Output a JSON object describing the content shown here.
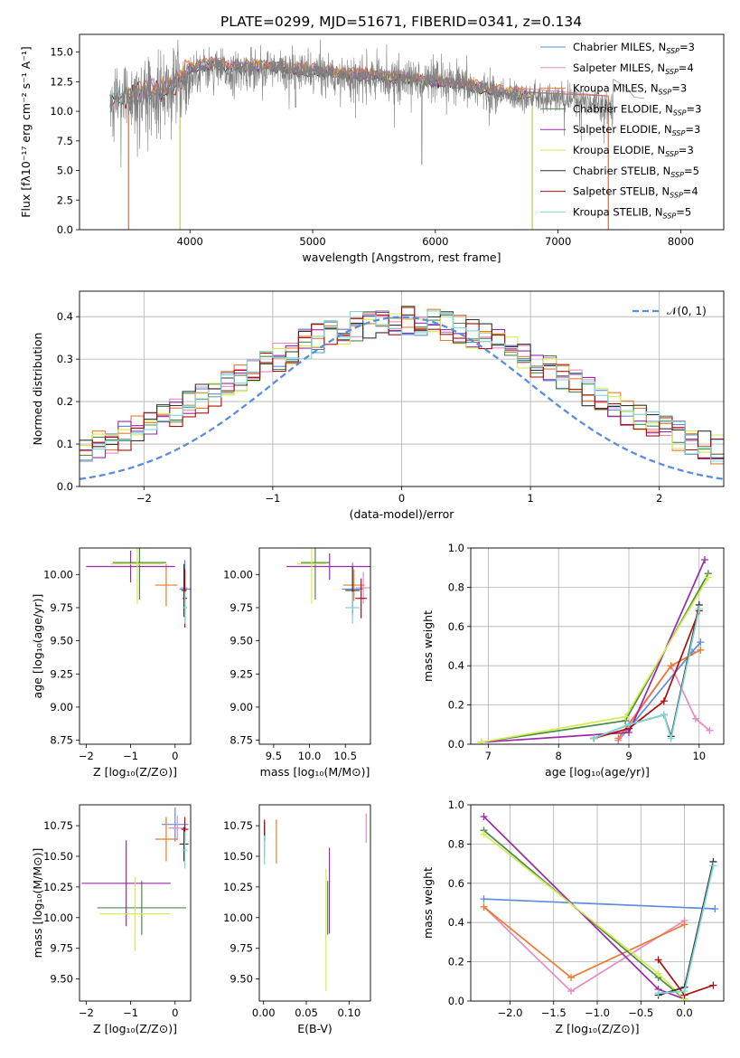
{
  "figure": {
    "title": "PLATE=0299, MJD=51671, FIBERID=0341, z=0.134"
  },
  "colors": {
    "Chabrier MILES": "#5b8ddc",
    "Salpeter MILES": "#e68ac4",
    "Kroupa MILES": "#ec7a2c",
    "Chabrier ELODIE": "#4c8a4c",
    "Salpeter ELODIE": "#9a2aa8",
    "Kroupa ELODIE": "#d6ec4c",
    "Chabrier STELIB": "#333333",
    "Salpeter STELIB": "#aa1010",
    "Kroupa STELIB": "#7fd6d6"
  },
  "chart_data": [
    {
      "id": "spectrum",
      "type": "line",
      "xlabel": "wavelength [Angstrom, rest frame]",
      "ylabel": "Flux [fλ10⁻¹⁷ erg cm⁻² s⁻¹ A⁻¹]",
      "xlim": [
        3100,
        8350
      ],
      "ylim": [
        0,
        16.5
      ],
      "xticks": [
        "4000",
        "5000",
        "6000",
        "7000",
        "8000"
      ],
      "yticks": [
        "0.0",
        "2.5",
        "5.0",
        "7.5",
        "10.0",
        "12.5",
        "15.0"
      ],
      "legend": [
        {
          "model": "Chabrier MILES",
          "label": "Chabrier MILES, N",
          "n": "3"
        },
        {
          "model": "Salpeter MILES",
          "label": "Salpeter MILES, N",
          "n": "4"
        },
        {
          "model": "Kroupa MILES",
          "label": "Kroupa MILES, N",
          "n": "3"
        },
        {
          "model": "Chabrier ELODIE",
          "label": "Chabrier ELODIE, N",
          "n": "3"
        },
        {
          "model": "Salpeter ELODIE",
          "label": "Salpeter ELODIE, N",
          "n": "3"
        },
        {
          "model": "Kroupa ELODIE",
          "label": "Kroupa ELODIE, N",
          "n": "3"
        },
        {
          "model": "Chabrier STELIB",
          "label": "Chabrier STELIB, N",
          "n": "5"
        },
        {
          "model": "Salpeter STELIB",
          "label": "Salpeter STELIB, N",
          "n": "4"
        },
        {
          "model": "Kroupa STELIB",
          "label": "Kroupa STELIB, N",
          "n": "5"
        }
      ],
      "legend_subscript": "SSP",
      "legend_placement": "upper-right",
      "data_continuum": [
        [
          3350,
          10.2
        ],
        [
          3450,
          11
        ],
        [
          3550,
          11.5
        ],
        [
          3650,
          11.2
        ],
        [
          3750,
          11.8
        ],
        [
          3850,
          12
        ],
        [
          3950,
          12.5
        ],
        [
          4050,
          13.5
        ],
        [
          4150,
          13.6
        ],
        [
          4250,
          13.4
        ],
        [
          4350,
          13.2
        ],
        [
          4500,
          13.6
        ],
        [
          4700,
          13.5
        ],
        [
          4900,
          13.3
        ],
        [
          5100,
          13.3
        ],
        [
          5300,
          12.9
        ],
        [
          5500,
          12.8
        ],
        [
          5700,
          12.7
        ],
        [
          5900,
          12.6
        ],
        [
          6100,
          12.4
        ],
        [
          6300,
          12
        ],
        [
          6500,
          11.4
        ],
        [
          6700,
          11.2
        ],
        [
          6900,
          11.1
        ],
        [
          7100,
          11
        ],
        [
          7300,
          10.8
        ],
        [
          7450,
          10.4
        ]
      ],
      "model_continuum": [
        [
          3350,
          10.5
        ],
        [
          3500,
          11.2
        ],
        [
          3700,
          11.6
        ],
        [
          3900,
          12.3
        ],
        [
          4000,
          13.5
        ],
        [
          4200,
          13.9
        ],
        [
          4400,
          13.6
        ],
        [
          4600,
          13.7
        ],
        [
          4800,
          13.5
        ],
        [
          5000,
          13.3
        ],
        [
          5200,
          13.1
        ],
        [
          5400,
          13
        ],
        [
          5600,
          12.8
        ],
        [
          5800,
          12.6
        ],
        [
          6000,
          12.4
        ],
        [
          6200,
          12.2
        ],
        [
          6400,
          11.8
        ],
        [
          6600,
          11.5
        ],
        [
          6750,
          11.3
        ]
      ],
      "model_ranges": {
        "MILES": [
          3500,
          7410
        ],
        "ELODIE": [
          3920,
          6790
        ],
        "STELIB": [
          3350,
          7450
        ]
      },
      "tail": [
        [
          7450,
          12.7
        ],
        [
          7560,
          12.0
        ],
        [
          7620,
          11.2
        ],
        [
          7700,
          11.1
        ]
      ]
    },
    {
      "id": "residuals",
      "type": "histogram",
      "xlabel": "(data-model)/error",
      "ylabel": "Normed distribution",
      "xlim": [
        -2.5,
        2.5
      ],
      "ylim": [
        0,
        0.46
      ],
      "xticks": [
        "−2",
        "−1",
        "0",
        "1",
        "2"
      ],
      "yticks": [
        "0.0",
        "0.1",
        "0.2",
        "0.3",
        "0.4"
      ],
      "bin_width": 0.1,
      "reference_curve": {
        "label": "𝒩(0, 1)",
        "mu": 0,
        "sigma": 1
      },
      "grid": true
    },
    {
      "id": "age-vs-Z",
      "type": "errorbar",
      "xlabel": "Z [log₁₀(Z/Z⊙)]",
      "ylabel": "age  [log₁₀(age/yr)]",
      "xlim": [
        -2.15,
        0.35
      ],
      "ylim": [
        8.72,
        10.2
      ],
      "xticks": [
        "−2",
        "−1",
        "0"
      ],
      "yticks": [
        "8.75",
        "9.00",
        "9.25",
        "9.50",
        "9.75",
        "10.00"
      ],
      "points": [
        {
          "model": "Chabrier MILES",
          "x": 0.22,
          "xerr": 0.12,
          "y": 9.89,
          "yerr": 0.22
        },
        {
          "model": "Salpeter MILES",
          "x": 0.2,
          "xerr": 0.08,
          "y": 9.9,
          "yerr": 0.1
        },
        {
          "model": "Kroupa MILES",
          "x": -0.2,
          "xerr": 0.25,
          "y": 9.92,
          "yerr": 0.16
        },
        {
          "model": "Chabrier ELODIE",
          "x": -0.8,
          "xerr": 0.6,
          "y": 10.09,
          "yerr": 0.28
        },
        {
          "model": "Salpeter ELODIE",
          "x": -1.0,
          "xerr": 1.0,
          "y": 10.06,
          "yerr": 0.12
        },
        {
          "model": "Kroupa ELODIE",
          "x": -0.85,
          "xerr": 0.6,
          "y": 10.08,
          "yerr": 0.3
        },
        {
          "model": "Chabrier STELIB",
          "x": 0.2,
          "xerr": 0.06,
          "y": 9.88,
          "yerr": 0.2
        },
        {
          "model": "Salpeter STELIB",
          "x": 0.22,
          "xerr": 0.05,
          "y": 9.82,
          "yerr": 0.22
        },
        {
          "model": "Kroupa STELIB",
          "x": 0.22,
          "xerr": 0.05,
          "y": 9.75,
          "yerr": 0.12
        }
      ]
    },
    {
      "id": "age-vs-mass",
      "type": "errorbar",
      "xlabel": "mass [log₁₀(M/M⊙)]",
      "ylabel": "",
      "xlim": [
        9.3,
        10.85
      ],
      "ylim": [
        8.72,
        10.2
      ],
      "xticks": [
        "9.5",
        "10.0",
        "10.5"
      ],
      "yticks": [
        "8.75",
        "9.00",
        "9.25",
        "9.50",
        "9.75",
        "10.00"
      ],
      "points": [
        {
          "model": "Chabrier MILES",
          "x": 10.6,
          "xerr": 0.15,
          "y": 9.89,
          "yerr": 0.2
        },
        {
          "model": "Salpeter MILES",
          "x": 10.75,
          "xerr": 0.1,
          "y": 9.9,
          "yerr": 0.12
        },
        {
          "model": "Kroupa MILES",
          "x": 10.62,
          "xerr": 0.15,
          "y": 9.92,
          "yerr": 0.12
        },
        {
          "model": "Chabrier ELODIE",
          "x": 10.08,
          "xerr": 0.2,
          "y": 10.09,
          "yerr": 0.28
        },
        {
          "model": "Salpeter ELODIE",
          "x": 10.28,
          "xerr": 0.6,
          "y": 10.06,
          "yerr": 0.1
        },
        {
          "model": "Kroupa ELODIE",
          "x": 10.03,
          "xerr": 0.2,
          "y": 10.08,
          "yerr": 0.3
        },
        {
          "model": "Chabrier STELIB",
          "x": 10.6,
          "xerr": 0.1,
          "y": 9.88,
          "yerr": 0.18
        },
        {
          "model": "Salpeter STELIB",
          "x": 10.72,
          "xerr": 0.08,
          "y": 9.82,
          "yerr": 0.15
        },
        {
          "model": "Kroupa STELIB",
          "x": 10.6,
          "xerr": 0.1,
          "y": 9.75,
          "yerr": 0.12
        }
      ]
    },
    {
      "id": "mass-weight-vs-age",
      "type": "line",
      "xlabel": "age  [log₁₀(age/yr)]",
      "ylabel": "mass weight",
      "xlim": [
        6.75,
        10.35
      ],
      "ylim": [
        0,
        1
      ],
      "xticks": [
        "7",
        "8",
        "9",
        "10"
      ],
      "yticks": [
        "0.0",
        "0.2",
        "0.4",
        "0.6",
        "0.8",
        "1.0"
      ],
      "grid": true,
      "series": [
        {
          "model": "Chabrier MILES",
          "x": [
            8.85,
            9.0,
            9.9,
            10.02
          ],
          "y": [
            0.02,
            0.08,
            0.47,
            0.52
          ]
        },
        {
          "model": "Salpeter MILES",
          "x": [
            8.85,
            9.6,
            9.95,
            10.15
          ],
          "y": [
            0.02,
            0.4,
            0.13,
            0.07
          ]
        },
        {
          "model": "Kroupa MILES",
          "x": [
            8.85,
            9.6,
            10.02
          ],
          "y": [
            0.03,
            0.4,
            0.48
          ]
        },
        {
          "model": "Chabrier ELODIE",
          "x": [
            6.9,
            8.95,
            10.13
          ],
          "y": [
            0.01,
            0.12,
            0.87
          ]
        },
        {
          "model": "Salpeter ELODIE",
          "x": [
            6.9,
            9.0,
            10.08
          ],
          "y": [
            0.01,
            0.06,
            0.94
          ]
        },
        {
          "model": "Kroupa ELODIE",
          "x": [
            6.9,
            8.95,
            10.13
          ],
          "y": [
            0.01,
            0.14,
            0.85
          ]
        },
        {
          "model": "Chabrier STELIB",
          "x": [
            8.5,
            9.0,
            9.5,
            9.6,
            10.0
          ],
          "y": [
            0.03,
            0.1,
            0.15,
            0.04,
            0.71
          ]
        },
        {
          "model": "Salpeter STELIB",
          "x": [
            8.5,
            9.0,
            9.5,
            10.0
          ],
          "y": [
            0.03,
            0.08,
            0.22,
            0.68
          ]
        },
        {
          "model": "Kroupa STELIB",
          "x": [
            8.5,
            9.0,
            9.5,
            9.6,
            10.0
          ],
          "y": [
            0.03,
            0.1,
            0.15,
            0.03,
            0.69
          ]
        }
      ]
    },
    {
      "id": "mass-vs-Z",
      "type": "errorbar",
      "xlabel": "Z [log₁₀(Z/Z⊙)]",
      "ylabel": "mass [log₁₀(M/M⊙)]",
      "xlim": [
        -2.15,
        0.35
      ],
      "ylim": [
        9.32,
        10.92
      ],
      "xticks": [
        "−2",
        "−1",
        "0"
      ],
      "yticks": [
        "9.50",
        "9.75",
        "10.00",
        "10.25",
        "10.50",
        "10.75"
      ],
      "points": [
        {
          "model": "Chabrier MILES",
          "x": 0.0,
          "xerr": 0.3,
          "y": 10.76,
          "yerr": 0.14
        },
        {
          "model": "Salpeter MILES",
          "x": 0.05,
          "xerr": 0.2,
          "y": 10.73,
          "yerr": 0.1
        },
        {
          "model": "Kroupa MILES",
          "x": -0.2,
          "xerr": 0.25,
          "y": 10.64,
          "yerr": 0.18
        },
        {
          "model": "Chabrier ELODIE",
          "x": -0.75,
          "xerr": 1.0,
          "y": 10.08,
          "yerr": 0.22
        },
        {
          "model": "Salpeter ELODIE",
          "x": -1.1,
          "xerr": 1.0,
          "y": 10.28,
          "yerr": 0.35
        },
        {
          "model": "Kroupa ELODIE",
          "x": -0.9,
          "xerr": 0.8,
          "y": 10.03,
          "yerr": 0.3
        },
        {
          "model": "Chabrier STELIB",
          "x": 0.2,
          "xerr": 0.1,
          "y": 10.6,
          "yerr": 0.14
        },
        {
          "model": "Salpeter STELIB",
          "x": 0.22,
          "xerr": 0.08,
          "y": 10.72,
          "yerr": 0.1
        },
        {
          "model": "Kroupa STELIB",
          "x": 0.22,
          "xerr": 0.06,
          "y": 10.55,
          "yerr": 0.15
        }
      ]
    },
    {
      "id": "mass-vs-ebv",
      "type": "errorbar",
      "xlabel": "E(B-V)",
      "ylabel": "",
      "xlim": [
        -0.005,
        0.125
      ],
      "ylim": [
        9.32,
        10.92
      ],
      "xticks": [
        "0.00",
        "0.05",
        "0.10"
      ],
      "yticks": [
        "9.50",
        "9.75",
        "10.00",
        "10.25",
        "10.50",
        "10.75"
      ],
      "points": [
        {
          "model": "Chabrier MILES",
          "x": 0.001,
          "xerr": 0.0,
          "y": 10.6,
          "yerr": 0.1
        },
        {
          "model": "Salpeter MILES",
          "x": 0.12,
          "xerr": 0.0,
          "y": 10.73,
          "yerr": 0.12
        },
        {
          "model": "Kroupa MILES",
          "x": 0.015,
          "xerr": 0.0,
          "y": 10.62,
          "yerr": 0.18
        },
        {
          "model": "Chabrier ELODIE",
          "x": 0.075,
          "xerr": 0.0,
          "y": 10.08,
          "yerr": 0.22
        },
        {
          "model": "Salpeter ELODIE",
          "x": 0.077,
          "xerr": 0.0,
          "y": 10.22,
          "yerr": 0.35
        },
        {
          "model": "Kroupa ELODIE",
          "x": 0.073,
          "xerr": 0.0,
          "y": 9.9,
          "yerr": 0.5
        },
        {
          "model": "Chabrier STELIB",
          "x": 0.001,
          "xerr": 0.0,
          "y": 10.7,
          "yerr": 0.08
        },
        {
          "model": "Salpeter STELIB",
          "x": 0.001,
          "xerr": 0.0,
          "y": 10.74,
          "yerr": 0.06
        },
        {
          "model": "Kroupa STELIB",
          "x": 0.001,
          "xerr": 0.0,
          "y": 10.55,
          "yerr": 0.12
        }
      ]
    },
    {
      "id": "mass-weight-vs-Z",
      "type": "line",
      "xlabel": "Z [log₁₀(Z/Z⊙)]",
      "ylabel": "mass weight",
      "xlim": [
        -2.45,
        0.45
      ],
      "ylim": [
        0,
        1
      ],
      "xticks": [
        "−2.0",
        "−1.5",
        "−1.0",
        "−0.5",
        "0.0"
      ],
      "yticks": [
        "0.0",
        "0.2",
        "0.4",
        "0.6",
        "0.8",
        "1.0"
      ],
      "grid": true,
      "series": [
        {
          "model": "Chabrier MILES",
          "x": [
            -2.3,
            0.35
          ],
          "y": [
            0.52,
            0.47
          ]
        },
        {
          "model": "Salpeter MILES",
          "x": [
            -2.3,
            -1.3,
            0.0
          ],
          "y": [
            0.48,
            0.05,
            0.41
          ]
        },
        {
          "model": "Kroupa MILES",
          "x": [
            -2.3,
            -1.3,
            0.0
          ],
          "y": [
            0.48,
            0.12,
            0.39
          ]
        },
        {
          "model": "Chabrier ELODIE",
          "x": [
            -2.3,
            -0.3,
            0.0
          ],
          "y": [
            0.87,
            0.12,
            0.01
          ]
        },
        {
          "model": "Salpeter ELODIE",
          "x": [
            -2.3,
            -0.3,
            0.0
          ],
          "y": [
            0.94,
            0.06,
            0.01
          ]
        },
        {
          "model": "Kroupa ELODIE",
          "x": [
            -2.3,
            -0.3,
            0.0
          ],
          "y": [
            0.85,
            0.14,
            0.01
          ]
        },
        {
          "model": "Chabrier STELIB",
          "x": [
            -0.3,
            0.0,
            0.33
          ],
          "y": [
            0.03,
            0.07,
            0.71
          ]
        },
        {
          "model": "Salpeter STELIB",
          "x": [
            -0.3,
            0.0,
            0.33
          ],
          "y": [
            0.21,
            0.03,
            0.08
          ]
        },
        {
          "model": "Kroupa STELIB",
          "x": [
            -0.3,
            0.0,
            0.33
          ],
          "y": [
            0.04,
            0.05,
            0.69
          ]
        }
      ]
    }
  ]
}
